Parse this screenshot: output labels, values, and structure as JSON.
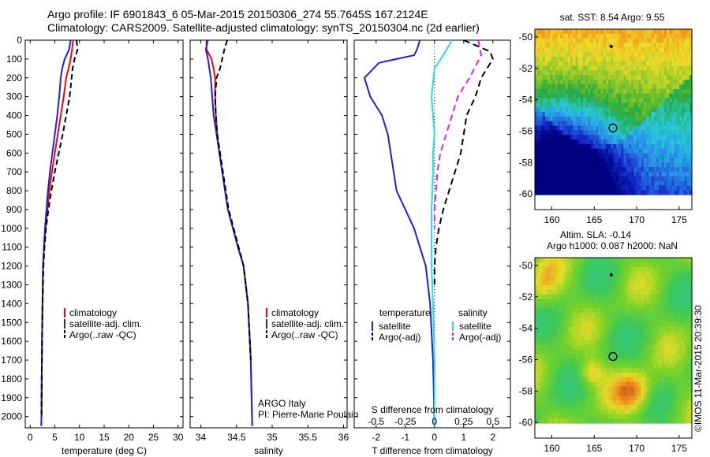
{
  "header": {
    "line1": "Argo profile: IF 6901843_6 05-Mar-2015 20150306_274 55.7645S 167.2124E",
    "line2": "Climatology: CARS2009. Satellite-adjusted climatology: synTS_20150304.nc (2d earlier)"
  },
  "stamp": "©IMOS 11-Mar-2015 20:39:30",
  "colors": {
    "red": "#ff0000",
    "blue": "#1f1fdf",
    "black": "#000000",
    "cyan": "#22e0e6",
    "magenta": "#e020e0"
  },
  "chart_data": [
    {
      "type": "line",
      "xlabel": "temperature (deg C)",
      "xlim": [
        -1,
        31
      ],
      "ylim": [
        2060,
        0
      ],
      "xticks": [
        0,
        5,
        10,
        15,
        20,
        25,
        30
      ],
      "yticks": [
        0,
        100,
        200,
        300,
        400,
        500,
        600,
        700,
        800,
        900,
        1000,
        1100,
        1200,
        1300,
        1400,
        1500,
        1600,
        1700,
        1800,
        1900,
        2000
      ],
      "legend": [
        "climatology",
        "satellite-adj. clim.",
        "Argo(..raw -QC)"
      ],
      "series": [
        {
          "name": "climatology",
          "color": "red",
          "dash": "",
          "x": [
            8.7,
            8.5,
            8.2,
            7.8,
            7.3,
            6.8,
            6.2,
            5.6,
            5.0,
            4.4,
            3.9,
            3.5,
            3.1,
            2.8,
            2.6,
            2.5,
            2.4,
            2.35,
            2.3,
            2.25
          ],
          "y": [
            0,
            50,
            100,
            150,
            200,
            300,
            400,
            500,
            600,
            700,
            800,
            900,
            1000,
            1100,
            1200,
            1400,
            1600,
            1800,
            2000,
            2050
          ]
        },
        {
          "name": "satellite-adj. clim.",
          "color": "blue",
          "dash": "",
          "x": [
            8.2,
            7.9,
            7.0,
            6.5,
            6.2,
            5.9,
            5.5,
            5.0,
            4.5,
            4.0,
            3.6,
            3.3,
            3.0,
            2.8,
            2.6,
            2.5,
            2.4,
            2.35,
            2.3,
            2.25
          ],
          "y": [
            0,
            50,
            100,
            150,
            200,
            300,
            400,
            500,
            600,
            700,
            800,
            900,
            1000,
            1100,
            1200,
            1400,
            1600,
            1800,
            2000,
            2050
          ]
        },
        {
          "name": "Argo(..raw -QC)",
          "color": "black",
          "dash": "7,4",
          "x": [
            9.4,
            9.6,
            9.0,
            8.6,
            8.4,
            8.0,
            7.3,
            6.6,
            5.8,
            5.0,
            4.3,
            3.7,
            3.2,
            2.9,
            2.7,
            2.5,
            2.4,
            2.35,
            2.3
          ],
          "y": [
            0,
            50,
            100,
            150,
            200,
            300,
            400,
            500,
            600,
            700,
            800,
            900,
            1000,
            1100,
            1200,
            1400,
            1600,
            1800,
            2000
          ]
        }
      ]
    },
    {
      "type": "line",
      "xlabel": "salinity",
      "xlim": [
        33.85,
        36.05
      ],
      "ylim": [
        2060,
        0
      ],
      "xticks": [
        34,
        34.5,
        35,
        35.5,
        36
      ],
      "legend": [
        "climatology",
        "satellite-adj. clim.",
        "Argo(..raw -QC)"
      ],
      "annotations": [
        "ARGO Italy",
        "PI: Pierre-Marie Poulain"
      ],
      "series": [
        {
          "name": "climatology",
          "color": "red",
          "dash": "",
          "x": [
            34.08,
            34.08,
            34.15,
            34.18,
            34.2,
            34.2,
            34.21,
            34.23,
            34.26,
            34.3,
            34.34,
            34.38,
            34.45,
            34.52,
            34.6,
            34.66,
            34.7,
            34.72
          ],
          "y": [
            0,
            50,
            100,
            150,
            200,
            300,
            400,
            500,
            600,
            700,
            800,
            900,
            1000,
            1100,
            1200,
            1400,
            1700,
            2050
          ]
        },
        {
          "name": "satellite-adj. clim.",
          "color": "blue",
          "dash": "",
          "x": [
            34.1,
            34.07,
            34.1,
            34.12,
            34.14,
            34.16,
            34.18,
            34.22,
            34.26,
            34.3,
            34.34,
            34.38,
            34.45,
            34.52,
            34.6,
            34.66,
            34.7,
            34.72
          ],
          "y": [
            0,
            50,
            100,
            150,
            200,
            300,
            400,
            500,
            600,
            700,
            800,
            900,
            1000,
            1100,
            1200,
            1400,
            1700,
            2050
          ]
        },
        {
          "name": "Argo(..raw -QC)",
          "color": "black",
          "dash": "7,4",
          "x": [
            34.37,
            34.33,
            34.3,
            34.27,
            34.22,
            34.2,
            34.21,
            34.23,
            34.27,
            34.31,
            34.35,
            34.39,
            34.46,
            34.53,
            34.6,
            34.66,
            34.7
          ],
          "y": [
            0,
            50,
            100,
            150,
            200,
            300,
            400,
            500,
            600,
            700,
            800,
            900,
            1000,
            1100,
            1200,
            1400,
            1700
          ]
        }
      ]
    },
    {
      "type": "line",
      "xlabel": "T difference from climatology",
      "topxlabel": "S difference from climatology",
      "xlim": [
        -2.75,
        2.6
      ],
      "ylim": [
        2060,
        0
      ],
      "xticks": [
        -2,
        -1,
        0,
        1,
        2
      ],
      "topticks": [
        {
          "label": "-0.5",
          "x": -2.0
        },
        {
          "label": "-0.25",
          "x": -1.0
        },
        {
          "label": "0",
          "x": 0
        },
        {
          "label": "0.25",
          "x": 1.0
        },
        {
          "label": "0.5",
          "x": 2.0
        }
      ],
      "legend": [
        {
          "header": "temperature",
          "items": [
            "satellite",
            "Argo(-adj)"
          ]
        },
        {
          "header": "salinity",
          "items": [
            "satellite",
            "Argo(-adj)"
          ]
        }
      ],
      "series": [
        {
          "name": "temperature satellite",
          "color": "blue",
          "dash": "",
          "x": [
            -0.5,
            -0.6,
            -0.7,
            -1.3,
            -1.9,
            -2.4,
            -2.2,
            -1.8,
            -1.6,
            -1.5,
            -1.4,
            -1.3,
            -1.0,
            -0.7,
            -0.5,
            -0.3,
            -0.15,
            -0.05,
            0
          ],
          "y": [
            0,
            50,
            80,
            100,
            120,
            200,
            300,
            400,
            500,
            600,
            700,
            800,
            900,
            1000,
            1100,
            1200,
            1400,
            1700,
            2050
          ]
        },
        {
          "name": "salinity satellite",
          "color": "cyan",
          "dash": "",
          "x": [
            0.6,
            0.3,
            0,
            -0.1,
            -0.05,
            0,
            -0.05,
            -0.05,
            -0.1,
            -0.1,
            -0.1,
            -0.05,
            0,
            0
          ],
          "y": [
            0,
            80,
            150,
            300,
            400,
            500,
            600,
            700,
            900,
            1000,
            1200,
            1400,
            1700,
            2050
          ]
        },
        {
          "name": "salinity Argo(-adj)",
          "color": "magenta",
          "dash": "8,5",
          "x": [
            1.5,
            1.6,
            1.2,
            0.8,
            0.6,
            0.4,
            0.2,
            0.1,
            0.05,
            0,
            0
          ],
          "y": [
            0,
            80,
            200,
            300,
            400,
            500,
            600,
            700,
            800,
            900,
            1000
          ]
        },
        {
          "name": "temperature Argo(-adj)",
          "color": "black",
          "dash": "8,5",
          "x": [
            1.0,
            1.9,
            2.0,
            1.6,
            1.4,
            1.1,
            1.0,
            0.9,
            0.7,
            0.5,
            0.3,
            0.15,
            0.05,
            0,
            0
          ],
          "y": [
            0,
            60,
            100,
            200,
            300,
            400,
            500,
            600,
            700,
            800,
            900,
            1000,
            1100,
            1200,
            1300
          ]
        }
      ]
    },
    {
      "type": "heatmap",
      "title": "sat. SST: 8.54  Argo: 9.55",
      "xlim": [
        158,
        176.5
      ],
      "ylim": [
        -61,
        -49.5
      ],
      "xticks": [
        160,
        165,
        170,
        175
      ],
      "yticks": [
        -50,
        -52,
        -54,
        -56,
        -58,
        -60
      ],
      "argo_position": {
        "lon": 167.2,
        "lat": -55.8
      }
    },
    {
      "type": "heatmap",
      "title": [
        "Altim. SLA: -0.14",
        "Argo h1000: 0.087 h2000: NaN"
      ],
      "xlim": [
        158,
        176.5
      ],
      "ylim": [
        -61,
        -49.5
      ],
      "xticks": [
        160,
        165,
        170,
        175
      ],
      "yticks": [
        -50,
        -52,
        -54,
        -56,
        -58,
        -60
      ],
      "argo_position": {
        "lon": 167.2,
        "lat": -55.8
      }
    }
  ]
}
